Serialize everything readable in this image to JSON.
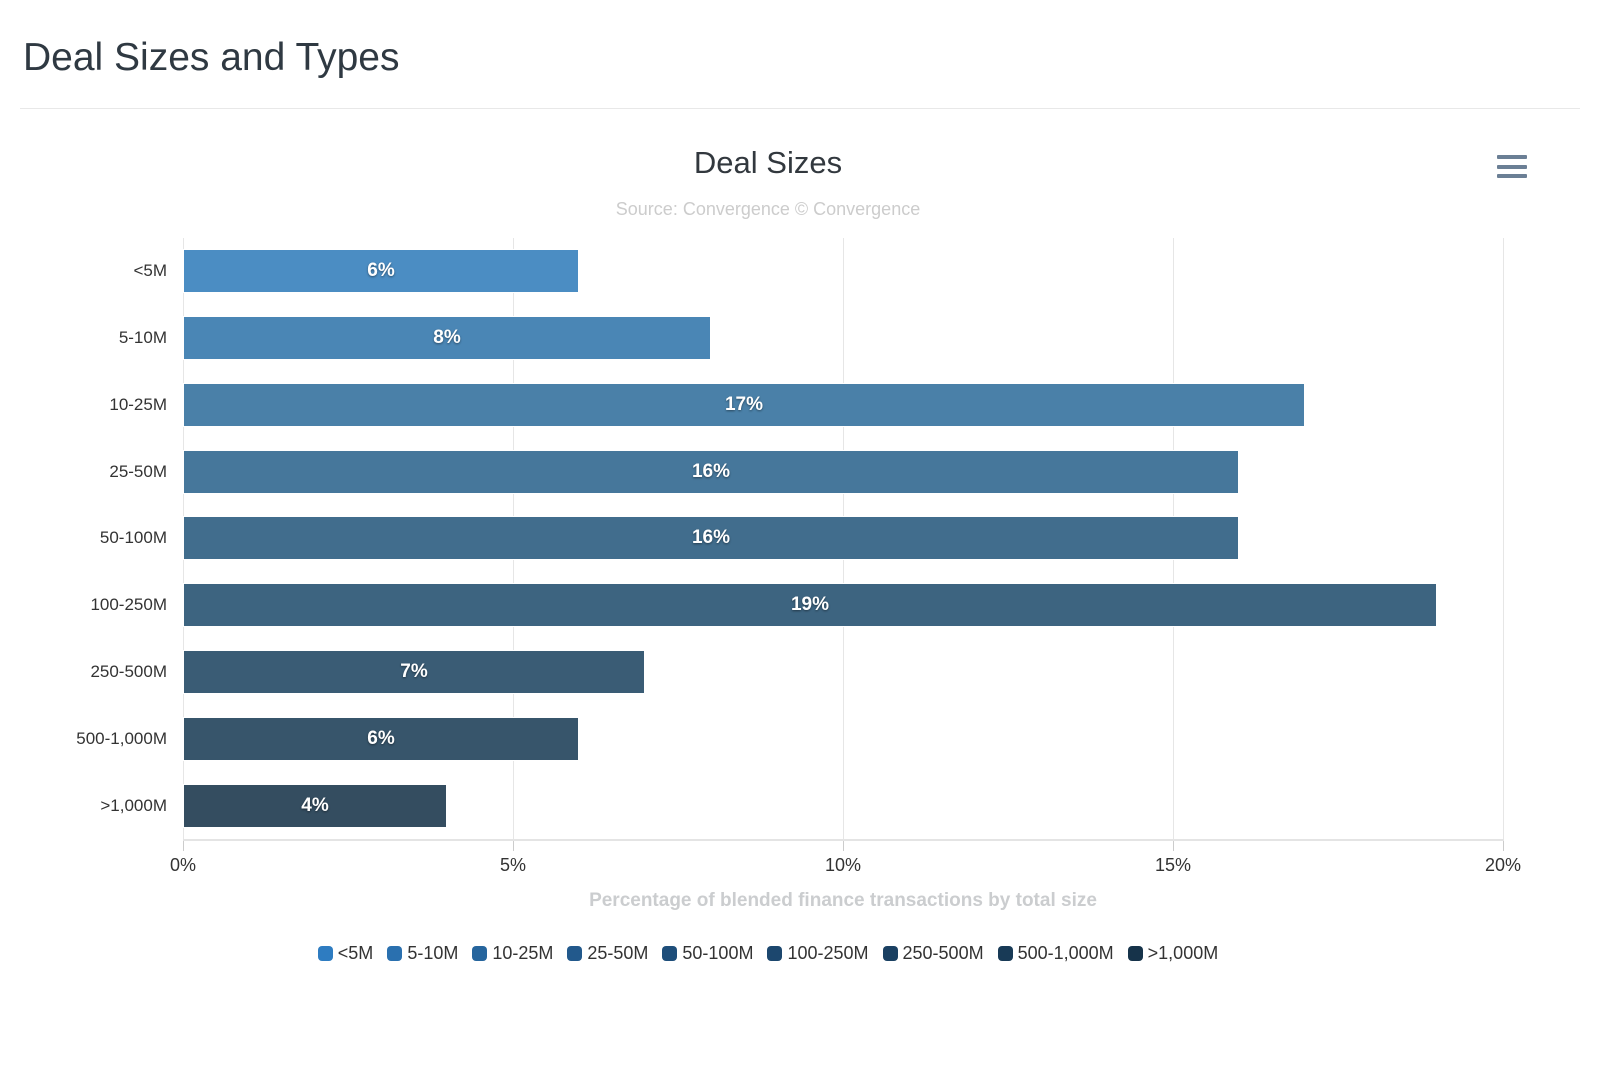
{
  "page": {
    "title": "Deal Sizes and Types"
  },
  "chart": {
    "context_menu_icon": "hamburger-menu-icon",
    "context_menu_color": "#6b7f95"
  },
  "chart_data": {
    "type": "bar",
    "orientation": "horizontal",
    "title": "Deal Sizes",
    "subtitle": "Source: Convergence © Convergence",
    "xlabel": "Percentage of blended finance transactions by total size",
    "ylabel": "",
    "xlim": [
      0,
      20
    ],
    "x_ticks": [
      "0%",
      "5%",
      "10%",
      "15%",
      "20%"
    ],
    "grid": true,
    "legend_position": "bottom",
    "categories": [
      "<5M",
      "5-10M",
      "10-25M",
      "25-50M",
      "50-100M",
      "100-250M",
      "250-500M",
      "500-1,000M",
      ">1,000M"
    ],
    "values": [
      6,
      8,
      17,
      16,
      16,
      19,
      7,
      6,
      4
    ],
    "data_labels": [
      "6%",
      "8%",
      "17%",
      "16%",
      "16%",
      "19%",
      "7%",
      "6%",
      "4%"
    ],
    "bar_colors": [
      "#4b8dc3",
      "#4a86b5",
      "#4a80a8",
      "#46779b",
      "#416d8d",
      "#3d6480",
      "#3a5c75",
      "#37556b",
      "#344d60"
    ],
    "legend_labels": [
      "<5M",
      "5-10M",
      "10-25M",
      "25-50M",
      "50-100M",
      "100-250M",
      "250-500M",
      "500-1,000M",
      ">1,000M"
    ],
    "legend_colors": [
      "#2e7cc1",
      "#2a70af",
      "#26659d",
      "#22598c",
      "#1e4e7a",
      "#1c476e",
      "#1a4062",
      "#183a56",
      "#16334a"
    ],
    "colors": {
      "axis_label": "#333333",
      "subtitle": "#cccccc",
      "gridline": "#e6e6e6",
      "data_label": "#ffffff"
    }
  }
}
